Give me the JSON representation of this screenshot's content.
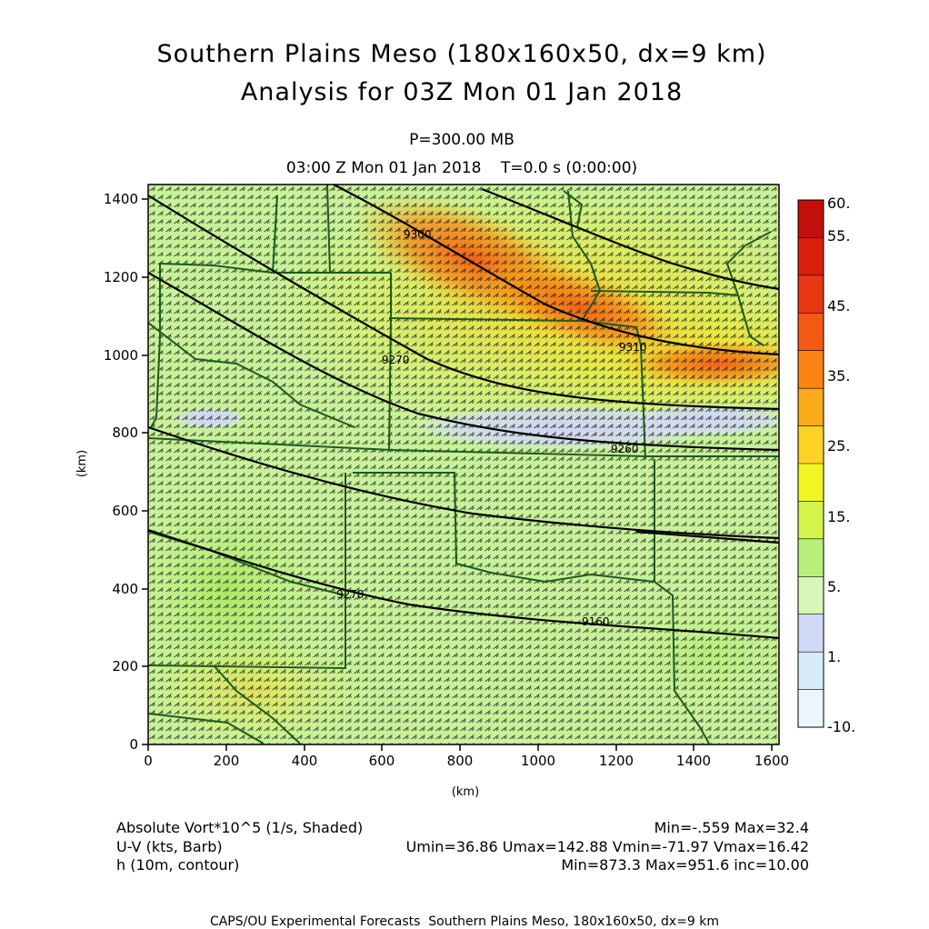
{
  "title_line1": "Southern Plains Meso (180x160x50, dx=9 km)",
  "title_line2": "Analysis for 03Z Mon 01 Jan 2018",
  "level": "P=300.00 MB",
  "time": "03:00 Z Mon 01 Jan 2018    T=0.0 s (0:00:00)",
  "axes": {
    "x_label": "(km)",
    "y_label": "(km)",
    "x_ticks": [
      "0",
      "200",
      "400",
      "600",
      "800",
      "1000",
      "1200",
      "1400",
      "1600"
    ],
    "y_ticks": [
      "0",
      "200",
      "400",
      "600",
      "800",
      "1000",
      "1200",
      "1400"
    ],
    "x_range_km": [
      0,
      1620
    ],
    "y_range_km": [
      0,
      1440
    ]
  },
  "colorbar": {
    "labels": [
      "60.",
      "55.",
      "45.",
      "35.",
      "25.",
      "15.",
      "5.",
      "1.",
      "-10."
    ],
    "colors_top_to_bottom": [
      "#c20f0a",
      "#d8210c",
      "#e83712",
      "#f55a14",
      "#fa8414",
      "#fbaa19",
      "#fcd224",
      "#f1f623",
      "#d4f54a",
      "#b6f07a",
      "#d6f7b8",
      "#d0d9f5",
      "#d6ecf8",
      "#eaf6fb"
    ]
  },
  "contours": {
    "labels": [
      "9300",
      "9310",
      "9270",
      "9260",
      "9270",
      "9160"
    ]
  },
  "footer": {
    "field1": "Absolute Vort*10^5 (1/s, Shaded)",
    "field1_stats": "Min=-.559 Max=32.4",
    "field2": "U-V (kts, Barb)",
    "field2_stats": "Umin=36.86 Umax=142.88 Vmin=-71.97 Vmax=16.42",
    "field3": "h (10m, contour)",
    "field3_stats": "Min=873.3 Max=951.6 inc=10.00",
    "credit": "CAPS/OU Experimental Forecasts  Southern Plains Meso, 180x160x50, dx=9 km"
  },
  "colors": {
    "contour": "#000000",
    "borders": "#1f5a1f",
    "barbs": "#1a1a1a"
  }
}
